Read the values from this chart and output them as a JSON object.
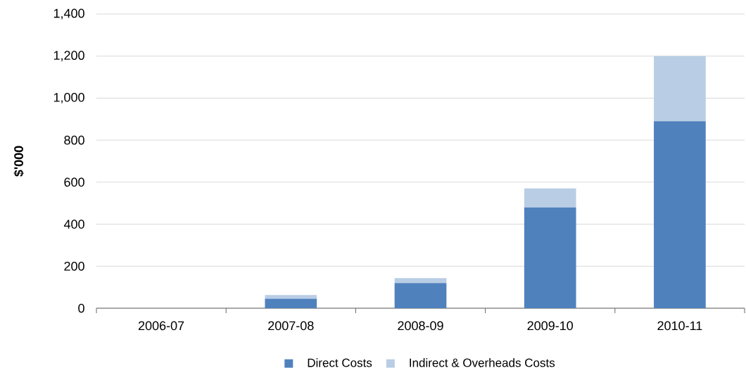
{
  "chart_data": {
    "type": "bar",
    "stacked": true,
    "ylabel": "$'000",
    "categories": [
      "2006-07",
      "2007-08",
      "2008-09",
      "2009-10",
      "2010-11"
    ],
    "series": [
      {
        "name": "Direct Costs",
        "color": "#4f81bd",
        "values": [
          0,
          45,
          120,
          480,
          890
        ]
      },
      {
        "name": "Indirect & Overheads Costs",
        "color": "#b9cde5",
        "values": [
          0,
          18,
          23,
          90,
          310
        ]
      }
    ],
    "ylim": [
      0,
      1400
    ],
    "yticks": [
      {
        "value": 0,
        "label": "0"
      },
      {
        "value": 200,
        "label": "200"
      },
      {
        "value": 400,
        "label": "400"
      },
      {
        "value": 600,
        "label": "600"
      },
      {
        "value": 800,
        "label": "800"
      },
      {
        "value": 1000,
        "label": "1,000"
      },
      {
        "value": 1200,
        "label": "1,200"
      },
      {
        "value": 1400,
        "label": "1,400"
      }
    ],
    "grid": "y",
    "legend": "bottom"
  }
}
